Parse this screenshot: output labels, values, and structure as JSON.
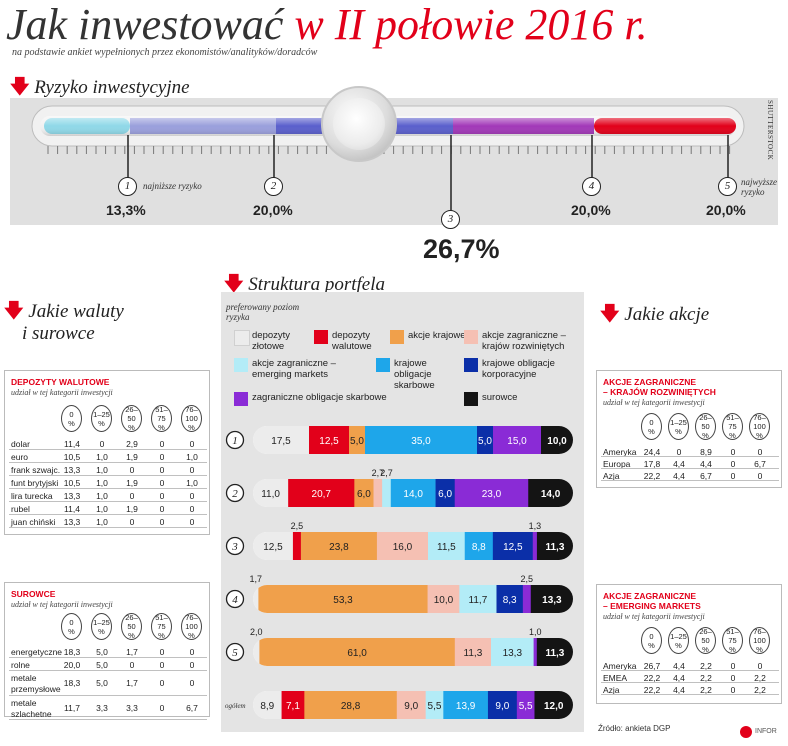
{
  "header": {
    "title_part1": "Jak inwestować",
    "title_part2": "w II połowie 2016 r.",
    "subtitle": "na podstawie ankiet wypełnionych przez ekonomistów/analityków/doradców",
    "credit": "SHUTTERSTOCK"
  },
  "risk": {
    "heading": "Ryzyko inwestycyjne",
    "low_label": "najniższe ryzyko",
    "high_label": "najwyższe ryzyko",
    "levels": [
      {
        "num": "1",
        "value": "13,3%"
      },
      {
        "num": "2",
        "value": "20,0%"
      },
      {
        "num": "3",
        "value": "26,7%"
      },
      {
        "num": "4",
        "value": "20,0%"
      },
      {
        "num": "5",
        "value": "20,0%"
      }
    ],
    "scale_colors": [
      "#8fd8e8",
      "#9a9fdc",
      "#5a5fcc",
      "#a238b8",
      "#e2001a"
    ]
  },
  "currencies": {
    "heading_line1": "Jakie waluty",
    "heading_line2": "i surowce",
    "deposits": {
      "title": "DEPOZYTY WALUTOWE",
      "subtitle": "udział w tej kategorii inwestycji",
      "columns": [
        [
          "0",
          "%"
        ],
        [
          "1–25",
          "%"
        ],
        [
          "26–50",
          "%"
        ],
        [
          "51–75",
          "%"
        ],
        [
          "76–100",
          "%"
        ]
      ],
      "rows": [
        {
          "name": "dolar",
          "v": [
            "11,4",
            "0",
            "2,9",
            "0",
            "0"
          ]
        },
        {
          "name": "euro",
          "v": [
            "10,5",
            "1,0",
            "1,9",
            "0",
            "1,0"
          ]
        },
        {
          "name": "frank szwajc.",
          "v": [
            "13,3",
            "1,0",
            "0",
            "0",
            "0"
          ]
        },
        {
          "name": "funt brytyjski",
          "v": [
            "10,5",
            "1,0",
            "1,9",
            "0",
            "1,0"
          ]
        },
        {
          "name": "lira turecka",
          "v": [
            "13,3",
            "1,0",
            "0",
            "0",
            "0"
          ]
        },
        {
          "name": "rubel",
          "v": [
            "11,4",
            "1,0",
            "1,9",
            "0",
            "0"
          ]
        },
        {
          "name": "juan chiński",
          "v": [
            "13,3",
            "1,0",
            "0",
            "0",
            "0"
          ]
        }
      ]
    },
    "commodities": {
      "title": "SUROWCE",
      "subtitle": "udział w tej kategorii inwestycji",
      "columns": [
        [
          "0",
          "%"
        ],
        [
          "1–25",
          "%"
        ],
        [
          "26–50",
          "%"
        ],
        [
          "51–75",
          "%"
        ],
        [
          "76–100",
          "%"
        ]
      ],
      "rows": [
        {
          "name": "energetyczne",
          "v": [
            "18,3",
            "5,0",
            "1,7",
            "0",
            "0"
          ]
        },
        {
          "name": "rolne",
          "v": [
            "20,0",
            "5,0",
            "0",
            "0",
            "0"
          ]
        },
        {
          "name": "metale przemysłowe",
          "v": [
            "18,3",
            "5,0",
            "1,7",
            "0",
            "0"
          ]
        },
        {
          "name": "metale szlachetne",
          "v": [
            "11,7",
            "3,3",
            "3,3",
            "0",
            "6,7"
          ]
        }
      ]
    }
  },
  "stocks": {
    "heading": "Jakie akcje",
    "developed": {
      "title_line1": "AKCJE ZAGRANICZNE",
      "title_line2": "– KRAJÓW ROZWINIĘTYCH",
      "subtitle": "udział w tej kategorii inwestycji",
      "columns": [
        [
          "0",
          "%"
        ],
        [
          "1–25",
          "%"
        ],
        [
          "26–50",
          "%"
        ],
        [
          "51–75",
          "%"
        ],
        [
          "76–100",
          "%"
        ]
      ],
      "rows": [
        {
          "name": "Ameryka",
          "v": [
            "24,4",
            "0",
            "8,9",
            "0",
            "0"
          ]
        },
        {
          "name": "Europa",
          "v": [
            "17,8",
            "4,4",
            "4,4",
            "0",
            "6,7"
          ]
        },
        {
          "name": "Azja",
          "v": [
            "22,2",
            "4,4",
            "6,7",
            "0",
            "0"
          ]
        }
      ]
    },
    "emerging": {
      "title_line1": "AKCJE ZAGRANICZNE",
      "title_line2": "– EMERGING MARKETS",
      "subtitle": "udział w tej kategorii inwestycji",
      "columns": [
        [
          "0",
          "%"
        ],
        [
          "1–25",
          "%"
        ],
        [
          "26–50",
          "%"
        ],
        [
          "51–75",
          "%"
        ],
        [
          "76–100",
          "%"
        ]
      ],
      "rows": [
        {
          "name": "Ameryka",
          "v": [
            "26,7",
            "4,4",
            "2,2",
            "0",
            "0"
          ]
        },
        {
          "name": "EMEA",
          "v": [
            "22,2",
            "4,4",
            "2,2",
            "0",
            "2,2"
          ]
        },
        {
          "name": "Azja",
          "v": [
            "22,2",
            "4,4",
            "2,2",
            "0",
            "2,2"
          ]
        }
      ]
    }
  },
  "source": "Źródło: ankieta DGP",
  "logo": "INFOR",
  "chart_data": {
    "type": "bar",
    "title": "Struktura portfela",
    "row_axis_label": "preferowany poziom ryzyka",
    "categories": [
      "1",
      "2",
      "3",
      "4",
      "5",
      "ogółem"
    ],
    "series": [
      {
        "name": "depozyty złotowe",
        "color": "#ececec",
        "values": [
          17.5,
          11.0,
          12.5,
          1.7,
          2.0,
          8.9
        ]
      },
      {
        "name": "depozyty walutowe",
        "color": "#e2001a",
        "values": [
          12.5,
          20.7,
          2.5,
          0,
          0,
          7.1
        ]
      },
      {
        "name": "akcje krajowe",
        "color": "#f0a04b",
        "values": [
          5.0,
          6.0,
          23.8,
          53.3,
          61.0,
          28.8
        ]
      },
      {
        "name": "akcje zagraniczne – krajów rozwiniętych",
        "color": "#f5c0b3",
        "values": [
          0,
          2.7,
          16.0,
          10.0,
          11.3,
          9.0
        ]
      },
      {
        "name": "akcje zagraniczne – emerging markets",
        "color": "#b3ecf7",
        "values": [
          0,
          2.7,
          11.5,
          11.7,
          13.3,
          5.5
        ]
      },
      {
        "name": "krajowe obligacje skarbowe",
        "color": "#1ea6ea",
        "values": [
          35.0,
          14.0,
          8.8,
          0,
          0,
          13.9
        ]
      },
      {
        "name": "krajowe obligacje korporacyjne",
        "color": "#0b2fa8",
        "values": [
          5.0,
          6.0,
          12.5,
          8.3,
          0,
          9.0
        ]
      },
      {
        "name": "zagraniczne obligacje skarbowe",
        "color": "#8a2bd6",
        "values": [
          15.0,
          23.0,
          1.3,
          2.5,
          1.0,
          5.5
        ]
      },
      {
        "name": "surowce",
        "color": "#141414",
        "values": [
          10.0,
          14.0,
          11.3,
          13.3,
          11.3,
          12.0
        ]
      }
    ],
    "labels": [
      [
        "17,5",
        "12,5",
        "5,0",
        "",
        "",
        "35,0",
        "5,0",
        "15,0",
        "10,0"
      ],
      [
        "11,0",
        "20,7",
        "6,0",
        "2,7",
        "2,7",
        "14,0",
        "6,0",
        "23,0",
        "14,0"
      ],
      [
        "12,5",
        "2,5",
        "23,8",
        "16,0",
        "11,5",
        "8,8",
        "12,5",
        "1,3",
        "11,3"
      ],
      [
        "1,7",
        "",
        "53,3",
        "10,0",
        "11,7",
        "",
        "8,3",
        "2,5",
        "13,3"
      ],
      [
        "2,0",
        "",
        "61,0",
        "11,3",
        "13,3",
        "",
        "",
        "1,0",
        "11,3"
      ],
      [
        "8,9",
        "7,1",
        "28,8",
        "9,0",
        "5,5",
        "13,9",
        "9,0",
        "5,5",
        "12,0"
      ]
    ],
    "xlim": [
      0,
      100
    ],
    "legend_position": "top"
  }
}
